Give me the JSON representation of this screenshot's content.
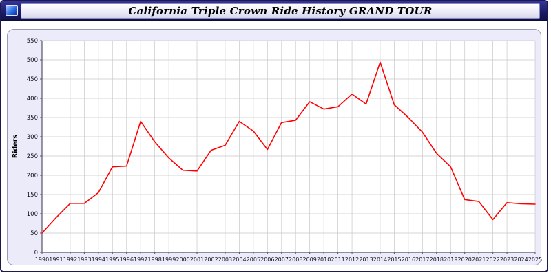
{
  "window": {
    "title": "California Triple Crown Ride History GRAND TOUR"
  },
  "chart_data": {
    "type": "line",
    "title": "California Triple Crown Ride History GRAND TOUR",
    "xlabel": "",
    "ylabel": "Riders",
    "ylim": [
      0,
      550
    ],
    "ytick_step": 50,
    "grid": true,
    "legend_position": "none",
    "line_color": "#ff0000",
    "x": [
      1990,
      1991,
      1992,
      1993,
      1994,
      1995,
      1996,
      1997,
      1998,
      1999,
      2000,
      2001,
      2002,
      2003,
      2004,
      2005,
      2006,
      2007,
      2008,
      2009,
      2010,
      2011,
      2012,
      2013,
      2014,
      2015,
      2016,
      2017,
      2018,
      2019,
      2020,
      2021,
      2022,
      2023,
      2024,
      2025
    ],
    "series": [
      {
        "name": "Riders",
        "values": [
          50,
          90,
          127,
          127,
          155,
          222,
          224,
          340,
          287,
          245,
          213,
          211,
          265,
          278,
          340,
          315,
          267,
          337,
          343,
          391,
          372,
          378,
          411,
          385,
          494,
          383,
          350,
          312,
          257,
          222,
          137,
          132,
          85,
          129,
          126,
          125
        ]
      }
    ]
  },
  "colors": {
    "line": "#ff0000",
    "panel_bg": "#ebebfa",
    "plot_bg": "#ffffff",
    "grid": "#c8c8c8",
    "axis": "#555566",
    "titlebar": "#1b1b66"
  }
}
